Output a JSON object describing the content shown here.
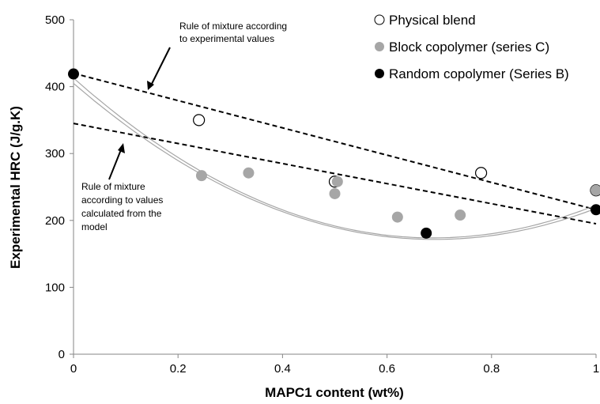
{
  "chart_data": {
    "type": "scatter",
    "title": "",
    "xlabel": "MAPC1 content (wt%)",
    "ylabel": "Experimental HRC (J/g.K)",
    "xlim": [
      0,
      1
    ],
    "ylim": [
      0,
      500
    ],
    "x_ticks": [
      "0",
      "0.2",
      "0.4",
      "0.6",
      "0.8",
      "1"
    ],
    "y_ticks": [
      "0",
      "100",
      "200",
      "300",
      "400",
      "500"
    ],
    "grid": false,
    "legend_position": "top-right",
    "series": [
      {
        "name": "Physical blend",
        "marker": "open-circle",
        "color": "#000000",
        "points": [
          [
            0.24,
            350
          ],
          [
            0.5,
            258
          ],
          [
            0.78,
            271
          ],
          [
            1.0,
            245
          ]
        ]
      },
      {
        "name": "Block copolymer (series C)",
        "marker": "filled-circle",
        "color": "#a6a6a6",
        "points": [
          [
            0.245,
            267
          ],
          [
            0.335,
            271
          ],
          [
            0.5,
            240
          ],
          [
            0.505,
            258
          ],
          [
            0.62,
            205
          ],
          [
            0.74,
            208
          ],
          [
            1.0,
            245
          ]
        ]
      },
      {
        "name": "Random copolymer (Series B)",
        "marker": "filled-circle",
        "color": "#000000",
        "points": [
          [
            0.0,
            419
          ],
          [
            0.675,
            181
          ],
          [
            1.0,
            216
          ]
        ]
      }
    ],
    "trendlines": [
      {
        "color": "#a6a6a6",
        "coeffs": [
          413,
          -695,
          505
        ]
      },
      {
        "color": "#a6a6a6",
        "coeffs": [
          405,
          -675,
          488
        ]
      }
    ],
    "reference_lines": [
      {
        "style": "dashed",
        "from": [
          0,
          420
        ],
        "to": [
          1,
          216
        ]
      },
      {
        "style": "dashed",
        "from": [
          0,
          345
        ],
        "to": [
          1,
          195
        ]
      }
    ],
    "annotations": [
      {
        "lines": [
          "Rule of mixture according",
          "to  experimental values"
        ]
      },
      {
        "lines": [
          "Rule of mixture",
          "according to  values",
          "calculated from the",
          "model"
        ]
      }
    ]
  }
}
